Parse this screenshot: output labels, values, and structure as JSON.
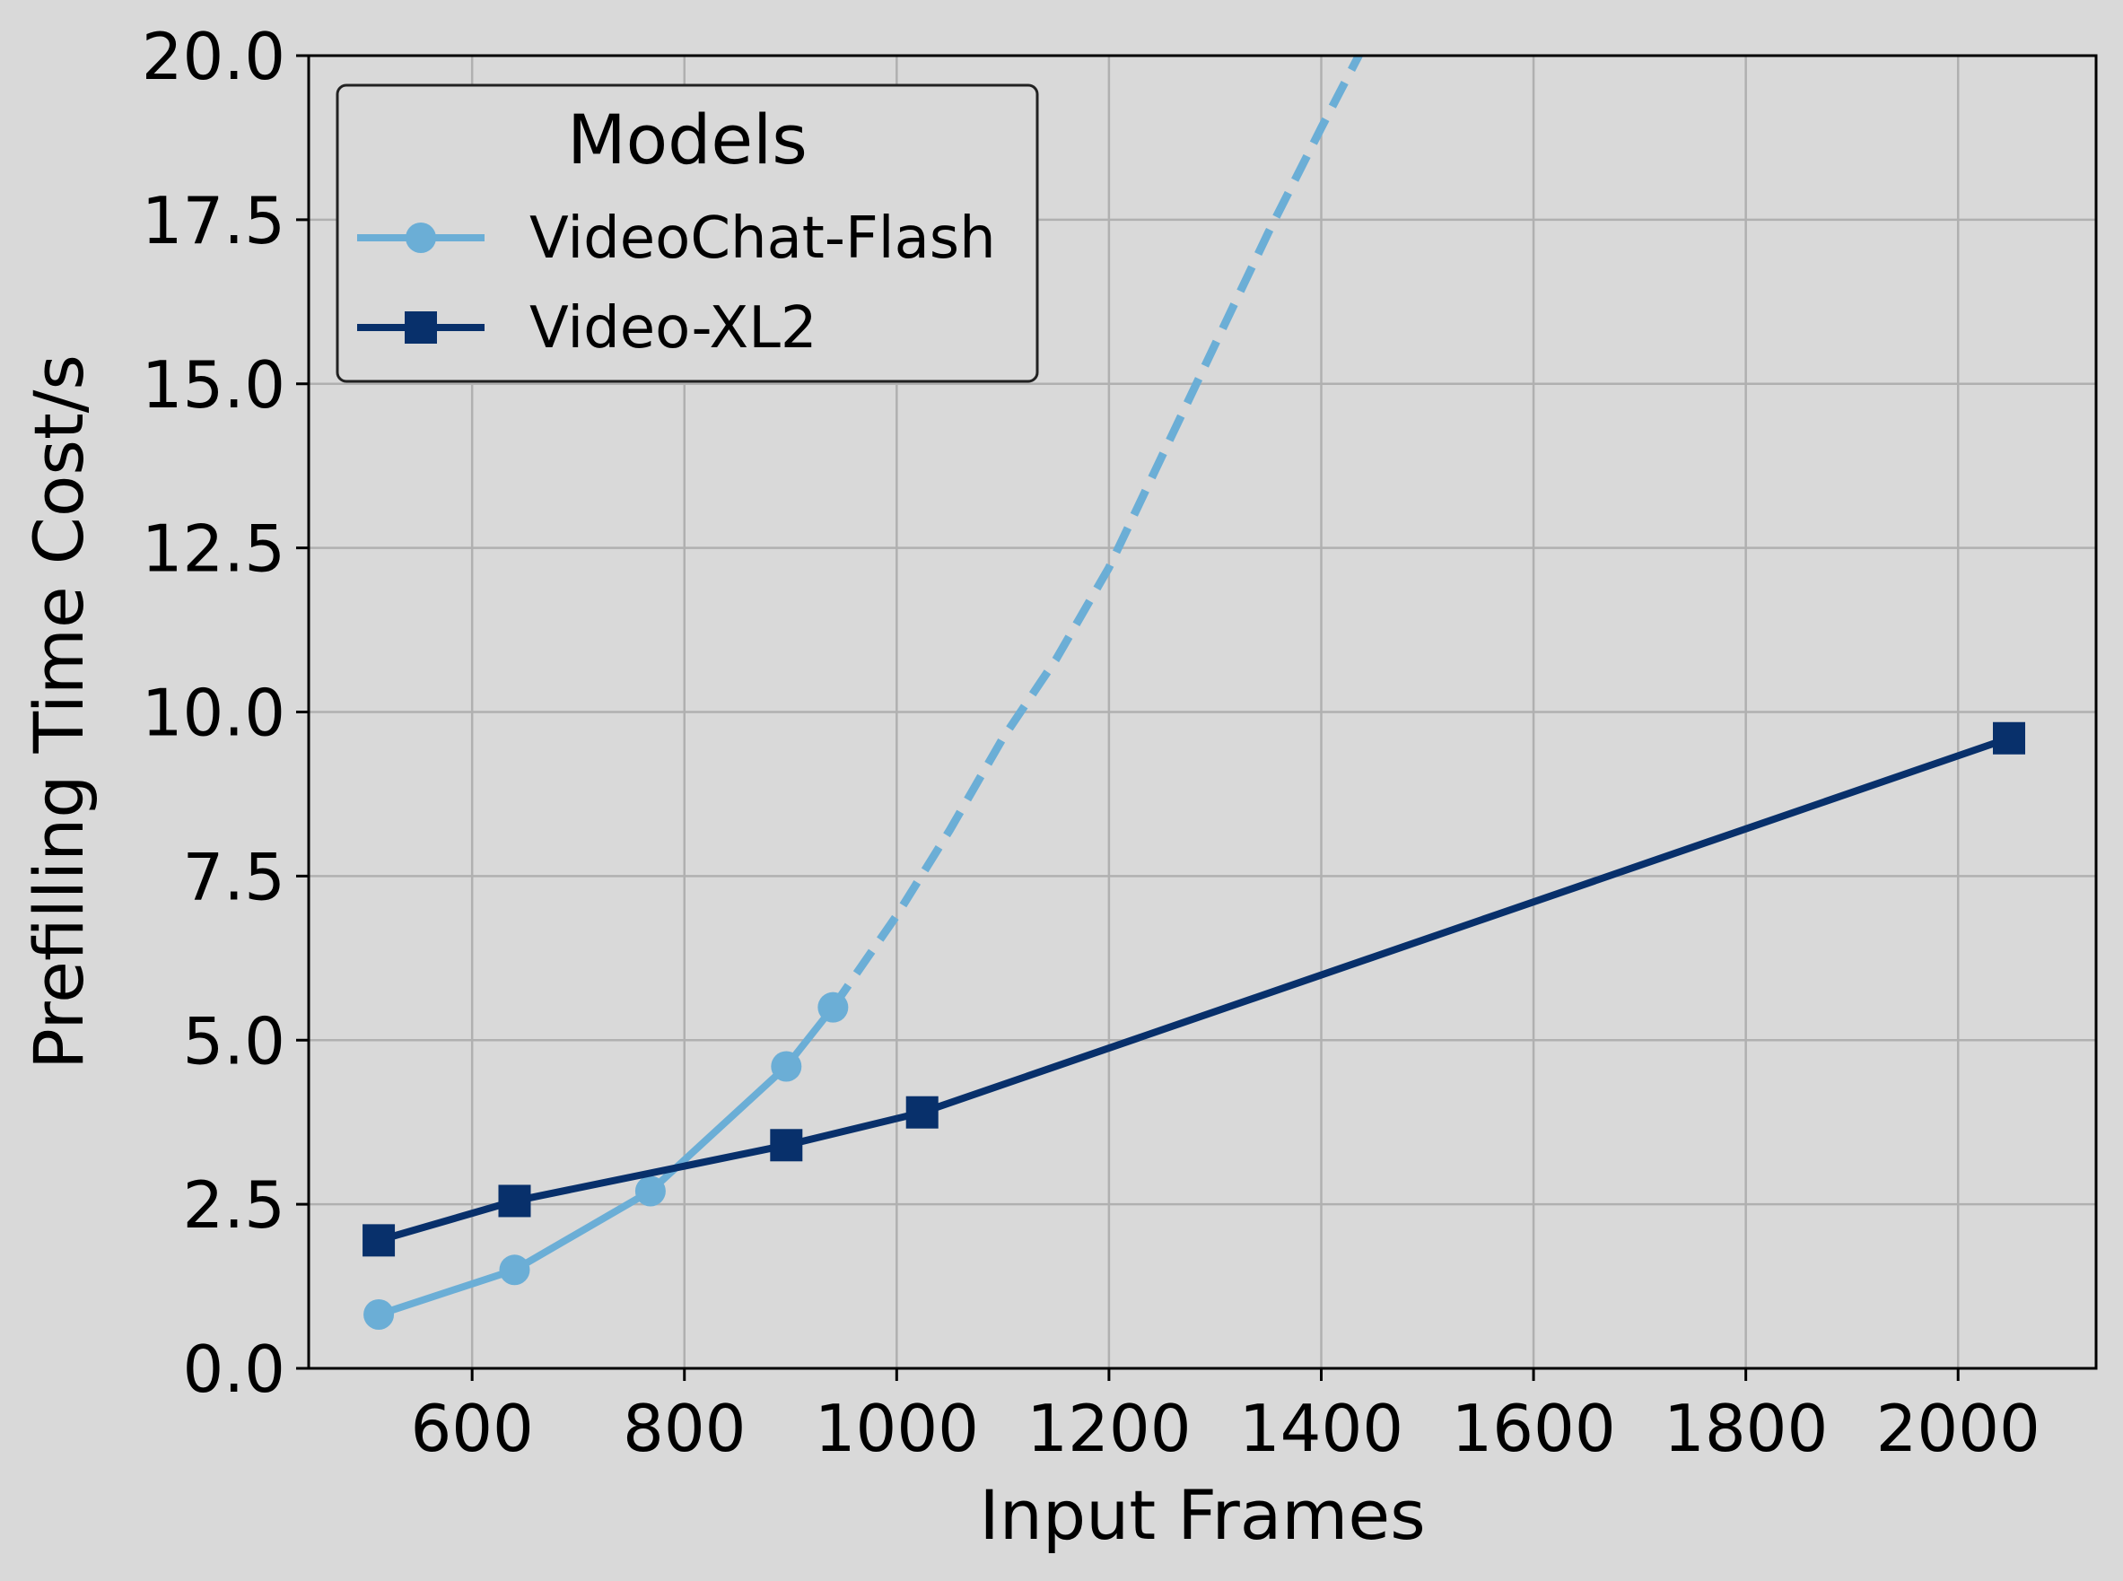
{
  "chart_data": {
    "type": "line",
    "title": "",
    "xlabel": "Input Frames",
    "ylabel": "Prefilling Time Cost/s",
    "xlim": [
      446,
      2130
    ],
    "ylim": [
      0,
      20
    ],
    "xticks": [
      600,
      800,
      1000,
      1200,
      1400,
      1600,
      1800,
      2000
    ],
    "yticks": [
      0.0,
      2.5,
      5.0,
      7.5,
      10.0,
      12.5,
      15.0,
      17.5,
      20.0
    ],
    "xtick_labels": [
      "600",
      "800",
      "1000",
      "1200",
      "1400",
      "1600",
      "1800",
      "2000"
    ],
    "ytick_labels": [
      "0.0",
      "2.5",
      "5.0",
      "7.5",
      "10.0",
      "12.5",
      "15.0",
      "17.5",
      "20.0"
    ],
    "grid": true,
    "legend": {
      "title": "Models",
      "position": "top-left"
    },
    "series": [
      {
        "name": "VideoChat-Flash",
        "color": "#6baed6",
        "marker": "circle",
        "x": [
          512,
          640,
          768,
          896,
          940
        ],
        "y": [
          0.82,
          1.5,
          2.7,
          4.6,
          5.5
        ],
        "extrapolation": {
          "style": "dashed",
          "x": [
            940,
            1000,
            1050,
            1100,
            1150,
            1200,
            1250,
            1300,
            1350,
            1400,
            1445
          ],
          "y": [
            5.5,
            6.9,
            8.2,
            9.6,
            10.8,
            12.2,
            13.9,
            15.6,
            17.3,
            18.9,
            20.3
          ]
        }
      },
      {
        "name": "Video-XL2",
        "color": "#08306b",
        "marker": "square",
        "x": [
          512,
          640,
          896,
          1024,
          2048
        ],
        "y": [
          1.95,
          2.55,
          3.4,
          3.9,
          9.6
        ]
      }
    ]
  }
}
